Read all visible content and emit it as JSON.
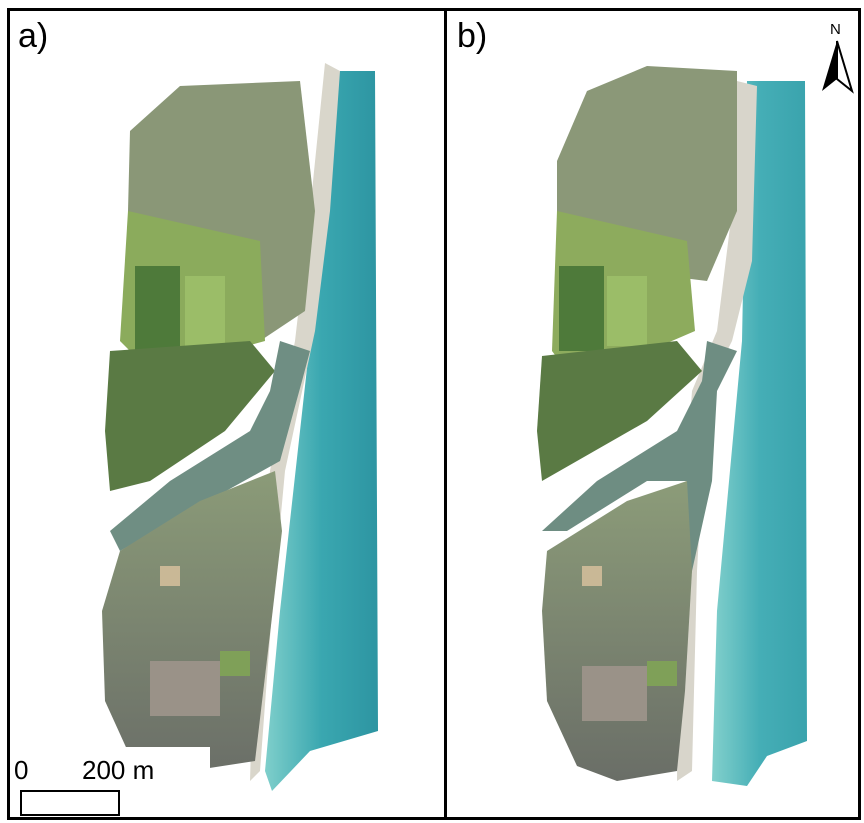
{
  "panels": [
    {
      "label": "a)"
    },
    {
      "label": "b)"
    }
  ],
  "scale_bar": {
    "start_label": "0",
    "end_label": "200 m"
  },
  "north_arrow": {
    "label": "N"
  },
  "colors": {
    "sea_deep": "#2e9aa6",
    "sea_shallow": "#6cc3c4",
    "beach": "#d8d6cc",
    "lagoon": "#6f8f86",
    "vegetation": "#5f7f48",
    "fields": "#86a85a",
    "urban": "#6a7264"
  }
}
